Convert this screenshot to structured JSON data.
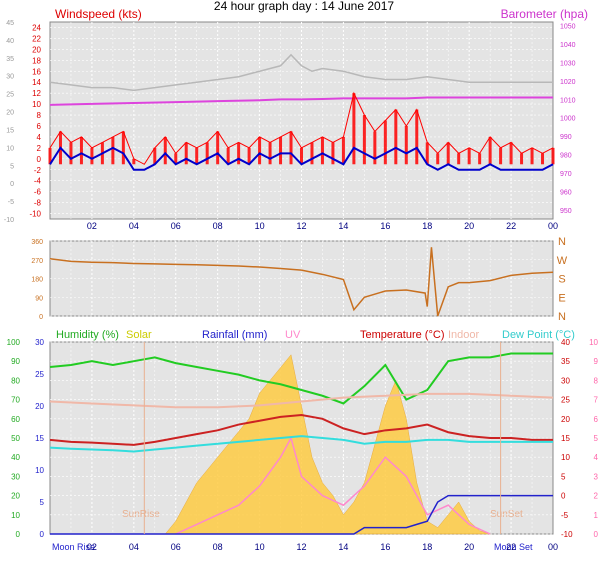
{
  "title": "24 hour graph day : 14 June 2017",
  "x_tick_labels": [
    "02",
    "04",
    "06",
    "08",
    "10",
    "12",
    "14",
    "16",
    "18",
    "20",
    "22",
    "00"
  ],
  "chart_data": [
    {
      "type": "line",
      "panel": "wind",
      "left_label": "Windspeed (kts)",
      "right_label": "Barometer (hpa)",
      "wind_ticks": [
        "24",
        "22",
        "20",
        "18",
        "16",
        "14",
        "12",
        "10",
        "8",
        "6",
        "4",
        "2",
        "0",
        "-2",
        "-4",
        "-6",
        "-8",
        "-10"
      ],
      "outer_ticks": [
        "45",
        "40",
        "35",
        "30",
        "25",
        "20",
        "15",
        "10",
        "5",
        "0",
        "-5",
        "-10"
      ],
      "baro_ticks": [
        "1050",
        "1040",
        "1030",
        "1020",
        "1010",
        "1000",
        "990",
        "980",
        "970",
        "960",
        "950"
      ],
      "series": [
        {
          "key": "gust",
          "color": "#ff0000",
          "x": [
            0,
            0.5,
            1,
            1.5,
            2,
            2.5,
            3,
            3.5,
            4,
            4.5,
            5,
            5.5,
            6,
            6.5,
            7,
            7.5,
            8,
            8.5,
            9,
            9.5,
            10,
            10.5,
            11,
            11.5,
            12,
            12.5,
            13,
            13.5,
            14,
            14.5,
            15,
            15.5,
            16,
            16.5,
            17,
            17.5,
            18,
            18.5,
            19,
            19.5,
            20,
            20.5,
            21,
            21.5,
            22,
            22.5,
            23,
            23.5,
            24
          ],
          "values": [
            2,
            5,
            3,
            4,
            2,
            3,
            4,
            5,
            0,
            -1,
            2,
            4,
            1,
            3,
            2,
            3,
            5,
            2,
            3,
            2,
            4,
            3,
            4,
            5,
            2,
            3,
            4,
            3,
            4,
            12,
            8,
            5,
            7,
            9,
            6,
            9,
            3,
            1,
            3,
            1,
            2,
            1,
            4,
            2,
            3,
            1,
            2,
            1,
            2
          ]
        },
        {
          "key": "wind",
          "color": "#0000cc",
          "x": [
            0,
            0.5,
            1,
            1.5,
            2,
            2.5,
            3,
            3.5,
            4,
            4.5,
            5,
            5.5,
            6,
            6.5,
            7,
            7.5,
            8,
            8.5,
            9,
            9.5,
            10,
            10.5,
            11,
            11.5,
            12,
            12.5,
            13,
            13.5,
            14,
            14.5,
            15,
            15.5,
            16,
            16.5,
            17,
            17.5,
            18,
            18.5,
            19,
            19.5,
            20,
            20.5,
            21,
            21.5,
            22,
            22.5,
            23,
            23.5,
            24
          ],
          "values": [
            -1,
            2,
            0,
            1,
            0,
            1,
            2,
            1,
            -2,
            -2,
            -1,
            1,
            -1,
            0,
            -1,
            0,
            1,
            -1,
            0,
            -1,
            1,
            0,
            1,
            1,
            -1,
            0,
            1,
            0,
            -1,
            2,
            1,
            0,
            1,
            2,
            1,
            2,
            -1,
            -2,
            -1,
            -2,
            -2,
            -2,
            -1,
            -2,
            -2,
            -2,
            -2,
            -2,
            -1
          ]
        },
        {
          "key": "barometer",
          "color": "#dd44dd",
          "x": [
            0,
            2,
            4,
            6,
            8,
            10,
            11,
            12,
            13,
            14,
            15,
            16,
            17,
            18,
            19,
            20,
            22,
            24
          ],
          "values": [
            1007,
            1007.5,
            1008,
            1008.5,
            1009,
            1009.5,
            1010,
            1010,
            1010.2,
            1010.5,
            1010.5,
            1010.5,
            1010.5,
            1011,
            1011,
            1011,
            1011,
            1011
          ]
        },
        {
          "key": "gust_max",
          "color": "#b8b8b8",
          "x": [
            0,
            1,
            2,
            3,
            4,
            5,
            6,
            7,
            8,
            9,
            10,
            11,
            11.5,
            12,
            12.5,
            13,
            14,
            15,
            16,
            17,
            18,
            19,
            20,
            21,
            22,
            23,
            24
          ],
          "values": [
            14,
            13.5,
            13,
            13,
            12.5,
            13,
            13.5,
            14,
            14.5,
            15,
            16,
            17,
            19,
            17,
            16,
            16.5,
            16,
            15,
            14.5,
            14.5,
            15,
            14.5,
            14,
            14,
            14,
            14,
            14
          ]
        }
      ],
      "xlim": [
        0,
        24
      ],
      "ylim": [
        -11,
        25
      ],
      "y2lim": [
        945,
        1052
      ]
    },
    {
      "type": "line",
      "panel": "direction",
      "direction_ticks": [
        "360",
        "270",
        "180",
        "90",
        "0"
      ],
      "compass_labels": [
        "N",
        "W",
        "S",
        "E",
        "N"
      ],
      "series": [
        {
          "key": "direction",
          "color": "#c87020",
          "x": [
            0,
            1,
            2,
            3,
            4,
            5,
            6,
            7,
            8,
            9,
            10,
            11,
            12,
            13,
            14,
            14.5,
            15,
            16,
            17,
            17.9,
            18,
            18.2,
            18.5,
            19,
            19.5,
            20,
            21,
            22,
            23,
            24
          ],
          "values": [
            275,
            262,
            258,
            256,
            252,
            250,
            248,
            246,
            243,
            240,
            235,
            228,
            220,
            200,
            175,
            30,
            90,
            120,
            125,
            110,
            45,
            330,
            0,
            140,
            160,
            160,
            170,
            195,
            205,
            210
          ]
        }
      ],
      "xlim": [
        0,
        24
      ],
      "ylim": [
        0,
        360
      ]
    },
    {
      "type": "area",
      "panel": "multi",
      "legend": [
        "Humidity (%)",
        "Solar",
        "Rainfall (mm)",
        "UV",
        "Temperature (°C)",
        "Indoor",
        "Dew Point (°C)"
      ],
      "humidity_ticks": [
        "100",
        "90",
        "80",
        "70",
        "60",
        "50",
        "40",
        "30",
        "20",
        "10",
        "0"
      ],
      "rain_ticks": [
        "30",
        "25",
        "20",
        "15",
        "10",
        "5",
        "0"
      ],
      "temp_ticks": [
        "40",
        "35",
        "30",
        "25",
        "20",
        "15",
        "10",
        "5",
        "0",
        "-5",
        "-10"
      ],
      "uv_ticks": [
        "10",
        "9",
        "8",
        "7",
        "6",
        "5",
        "4",
        "3",
        "2",
        "1",
        "0"
      ],
      "annotations": [
        "SunRise",
        "SunSet",
        "Moon Rise",
        "Moon Set"
      ],
      "series": [
        {
          "key": "humidity",
          "color": "#22cc22",
          "x": [
            0,
            1,
            2,
            3,
            4,
            5,
            6,
            7,
            8,
            9,
            10,
            11,
            12,
            13,
            14,
            15,
            16,
            17,
            18,
            19,
            20,
            21,
            22,
            23,
            24
          ],
          "values": [
            87,
            88,
            90,
            88,
            90,
            92,
            89,
            87,
            85,
            83,
            80,
            78,
            75,
            72,
            68,
            77,
            88,
            70,
            75,
            90,
            92,
            92,
            94,
            94,
            94
          ]
        },
        {
          "key": "temperature",
          "color": "#cc2222",
          "x": [
            0,
            1,
            2,
            3,
            4,
            5,
            6,
            7,
            8,
            9,
            10,
            11,
            12,
            13,
            14,
            15,
            16,
            17,
            18,
            19,
            20,
            21,
            22,
            23,
            24
          ],
          "values": [
            14.5,
            14,
            13.8,
            13.5,
            13.2,
            14,
            15,
            16,
            17,
            18.5,
            19.5,
            20.5,
            21,
            20,
            17.5,
            16,
            17,
            17.5,
            18.5,
            16.5,
            15.5,
            15,
            15,
            14.5,
            14.5
          ]
        },
        {
          "key": "dewpoint",
          "color": "#33dddd",
          "x": [
            0,
            1,
            2,
            3,
            4,
            5,
            6,
            7,
            8,
            9,
            10,
            11,
            12,
            13,
            14,
            15,
            16,
            17,
            18,
            19,
            20,
            21,
            22,
            23,
            24
          ],
          "values": [
            12.5,
            12.2,
            12,
            11.8,
            11.5,
            12,
            12.5,
            13,
            13.5,
            14,
            14.5,
            15,
            15.5,
            15,
            14.5,
            13.5,
            14,
            14,
            14.5,
            14.5,
            14,
            14,
            14,
            14,
            14
          ]
        },
        {
          "key": "indoor",
          "color": "#f0b8a8",
          "x": [
            0,
            2,
            4,
            6,
            8,
            10,
            12,
            14,
            16,
            18,
            20,
            22,
            24
          ],
          "values": [
            24.5,
            24,
            23.5,
            23,
            23,
            23.5,
            24.5,
            25.5,
            26,
            26.5,
            26.5,
            26,
            25.5
          ]
        },
        {
          "key": "rainfall",
          "color": "#2222cc",
          "x": [
            0,
            14.5,
            15,
            17,
            17.5,
            18,
            18.5,
            19,
            20,
            24
          ],
          "values": [
            0,
            0,
            1,
            1,
            1.5,
            2,
            5,
            6,
            6,
            6
          ]
        }
      ],
      "solar": {
        "color": "#ffcc44",
        "x": [
          5.5,
          6,
          6.5,
          7,
          7.5,
          8,
          8.5,
          9,
          9.5,
          10,
          10.5,
          11,
          11.5,
          12,
          12.5,
          13,
          13.5,
          14,
          14.5,
          15,
          15.5,
          16,
          16.5,
          17,
          17.5,
          18,
          18.5,
          19,
          19.5,
          20,
          20.5,
          21
        ],
        "values": [
          0,
          2,
          5,
          8,
          10,
          12,
          14,
          16,
          18,
          22,
          24,
          26,
          28,
          20,
          12,
          8,
          6,
          3,
          5,
          8,
          14,
          20,
          24,
          18,
          8,
          2,
          1,
          3,
          5,
          2,
          0.5,
          0
        ]
      },
      "uv": {
        "color": "#ff88cc",
        "x": [
          6,
          7,
          8,
          9,
          10,
          11,
          11.5,
          12,
          13,
          14,
          15,
          16,
          17,
          18,
          19,
          20,
          21
        ],
        "values": [
          0,
          0.5,
          1,
          1.5,
          2.5,
          4,
          5,
          3,
          2,
          1.5,
          2.5,
          4,
          3,
          1,
          1.5,
          0.5,
          0
        ]
      },
      "xlim": [
        0,
        24
      ],
      "ylim": [
        0,
        100
      ]
    }
  ]
}
